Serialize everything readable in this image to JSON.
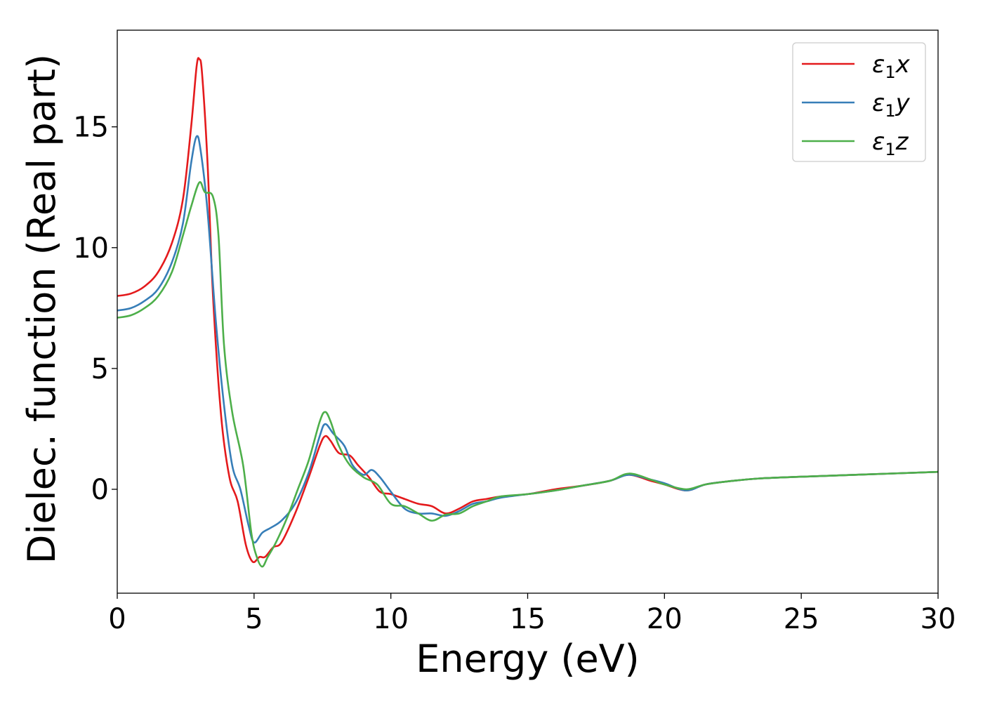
{
  "chart_data": {
    "type": "line",
    "xlabel": "Energy (eV)",
    "ylabel": "Dielec. function (Real part)",
    "xlim": [
      0,
      30
    ],
    "ylim": [
      -4.3,
      19.0
    ],
    "xticks": [
      0,
      5,
      10,
      15,
      20,
      25,
      30
    ],
    "yticks": [
      0,
      5,
      10,
      15
    ],
    "grid": false,
    "legend_position": "top-right",
    "series": [
      {
        "name": "ε1x",
        "legend": {
          "base": "ε",
          "sub": "1",
          "suffix": "x"
        },
        "color": "#e41a1c",
        "points": [
          [
            0,
            8.0
          ],
          [
            0.5,
            8.1
          ],
          [
            1.0,
            8.4
          ],
          [
            1.5,
            9.0
          ],
          [
            2.0,
            10.2
          ],
          [
            2.4,
            12.0
          ],
          [
            2.7,
            15.0
          ],
          [
            2.9,
            17.5
          ],
          [
            3.0,
            17.8
          ],
          [
            3.1,
            17.2
          ],
          [
            3.3,
            13.5
          ],
          [
            3.5,
            8.0
          ],
          [
            3.8,
            3.0
          ],
          [
            4.1,
            0.5
          ],
          [
            4.4,
            -0.5
          ],
          [
            4.7,
            -2.3
          ],
          [
            4.95,
            -3.0
          ],
          [
            5.2,
            -2.8
          ],
          [
            5.4,
            -2.8
          ],
          [
            5.7,
            -2.4
          ],
          [
            6.0,
            -2.2
          ],
          [
            6.5,
            -1.0
          ],
          [
            7.0,
            0.5
          ],
          [
            7.4,
            1.8
          ],
          [
            7.6,
            2.2
          ],
          [
            7.8,
            2.0
          ],
          [
            8.1,
            1.5
          ],
          [
            8.5,
            1.4
          ],
          [
            8.8,
            1.0
          ],
          [
            9.2,
            0.5
          ],
          [
            9.6,
            -0.1
          ],
          [
            10.0,
            -0.2
          ],
          [
            10.5,
            -0.4
          ],
          [
            11.0,
            -0.6
          ],
          [
            11.5,
            -0.7
          ],
          [
            12.0,
            -1.0
          ],
          [
            12.5,
            -0.8
          ],
          [
            13.0,
            -0.5
          ],
          [
            13.5,
            -0.4
          ],
          [
            14.0,
            -0.3
          ],
          [
            15.0,
            -0.2
          ],
          [
            16.0,
            0.0
          ],
          [
            17.0,
            0.15
          ],
          [
            18.0,
            0.35
          ],
          [
            18.7,
            0.6
          ],
          [
            19.5,
            0.35
          ],
          [
            20.0,
            0.2
          ],
          [
            20.8,
            -0.05
          ],
          [
            21.5,
            0.2
          ],
          [
            22.5,
            0.35
          ],
          [
            23.5,
            0.45
          ],
          [
            25.0,
            0.52
          ],
          [
            27.0,
            0.6
          ],
          [
            30.0,
            0.72
          ]
        ]
      },
      {
        "name": "ε1y",
        "legend": {
          "base": "ε",
          "sub": "1",
          "suffix": "y"
        },
        "color": "#377eb8",
        "points": [
          [
            0,
            7.4
          ],
          [
            0.5,
            7.5
          ],
          [
            1.0,
            7.8
          ],
          [
            1.5,
            8.3
          ],
          [
            2.0,
            9.4
          ],
          [
            2.4,
            11.0
          ],
          [
            2.7,
            13.5
          ],
          [
            2.9,
            14.6
          ],
          [
            3.05,
            14.0
          ],
          [
            3.3,
            11.5
          ],
          [
            3.6,
            7.0
          ],
          [
            3.9,
            3.5
          ],
          [
            4.2,
            1.0
          ],
          [
            4.5,
            0.0
          ],
          [
            4.8,
            -1.5
          ],
          [
            5.0,
            -2.2
          ],
          [
            5.3,
            -1.8
          ],
          [
            5.6,
            -1.6
          ],
          [
            6.0,
            -1.3
          ],
          [
            6.5,
            -0.6
          ],
          [
            7.0,
            0.7
          ],
          [
            7.4,
            2.2
          ],
          [
            7.6,
            2.7
          ],
          [
            7.9,
            2.3
          ],
          [
            8.3,
            1.8
          ],
          [
            8.6,
            1.0
          ],
          [
            9.0,
            0.6
          ],
          [
            9.3,
            0.8
          ],
          [
            9.6,
            0.5
          ],
          [
            10.0,
            -0.1
          ],
          [
            10.5,
            -0.8
          ],
          [
            11.0,
            -1.0
          ],
          [
            11.5,
            -1.0
          ],
          [
            12.0,
            -1.1
          ],
          [
            12.5,
            -0.9
          ],
          [
            13.0,
            -0.6
          ],
          [
            13.5,
            -0.5
          ],
          [
            14.0,
            -0.35
          ],
          [
            15.0,
            -0.2
          ],
          [
            16.0,
            -0.05
          ],
          [
            17.0,
            0.15
          ],
          [
            18.0,
            0.35
          ],
          [
            18.7,
            0.6
          ],
          [
            19.5,
            0.4
          ],
          [
            20.0,
            0.25
          ],
          [
            20.8,
            -0.05
          ],
          [
            21.5,
            0.2
          ],
          [
            22.5,
            0.35
          ],
          [
            23.5,
            0.45
          ],
          [
            25.0,
            0.52
          ],
          [
            27.0,
            0.6
          ],
          [
            30.0,
            0.72
          ]
        ]
      },
      {
        "name": "ε1z",
        "legend": {
          "base": "ε",
          "sub": "1",
          "suffix": "z"
        },
        "color": "#4daf4a",
        "points": [
          [
            0,
            7.1
          ],
          [
            0.5,
            7.2
          ],
          [
            1.0,
            7.5
          ],
          [
            1.5,
            8.0
          ],
          [
            2.0,
            9.0
          ],
          [
            2.4,
            10.5
          ],
          [
            2.7,
            11.7
          ],
          [
            3.0,
            12.7
          ],
          [
            3.2,
            12.3
          ],
          [
            3.5,
            12.1
          ],
          [
            3.7,
            10.5
          ],
          [
            3.9,
            6.0
          ],
          [
            4.2,
            3.2
          ],
          [
            4.6,
            1.0
          ],
          [
            4.9,
            -1.8
          ],
          [
            5.1,
            -2.8
          ],
          [
            5.3,
            -3.2
          ],
          [
            5.5,
            -2.8
          ],
          [
            5.8,
            -2.2
          ],
          [
            6.2,
            -1.2
          ],
          [
            6.6,
            0.0
          ],
          [
            7.0,
            1.2
          ],
          [
            7.4,
            2.8
          ],
          [
            7.6,
            3.2
          ],
          [
            7.8,
            2.8
          ],
          [
            8.1,
            1.8
          ],
          [
            8.5,
            1.0
          ],
          [
            9.0,
            0.5
          ],
          [
            9.5,
            0.2
          ],
          [
            10.0,
            -0.6
          ],
          [
            10.5,
            -0.7
          ],
          [
            11.0,
            -1.0
          ],
          [
            11.5,
            -1.3
          ],
          [
            12.0,
            -1.05
          ],
          [
            12.5,
            -1.0
          ],
          [
            13.0,
            -0.7
          ],
          [
            13.5,
            -0.5
          ],
          [
            14.0,
            -0.3
          ],
          [
            15.0,
            -0.2
          ],
          [
            16.0,
            -0.05
          ],
          [
            17.0,
            0.15
          ],
          [
            18.0,
            0.35
          ],
          [
            18.7,
            0.65
          ],
          [
            19.5,
            0.4
          ],
          [
            20.0,
            0.2
          ],
          [
            20.8,
            0.0
          ],
          [
            21.5,
            0.2
          ],
          [
            22.5,
            0.35
          ],
          [
            23.5,
            0.45
          ],
          [
            25.0,
            0.52
          ],
          [
            27.0,
            0.6
          ],
          [
            30.0,
            0.72
          ]
        ]
      }
    ]
  }
}
